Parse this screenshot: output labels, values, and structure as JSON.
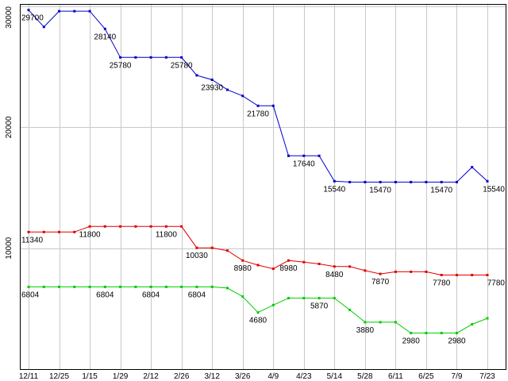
{
  "chart_data": {
    "type": "line",
    "title": "",
    "background": "#ffffff",
    "grid": true,
    "grid_color": "#c8c8c8",
    "axis_color": "#000000",
    "legend": "none",
    "ylim": [
      0,
      30200
    ],
    "y_ticks": [
      10000,
      20000,
      30000
    ],
    "y_tick_labels": [
      "10000",
      "20000",
      "30000"
    ],
    "x_tick_labels": [
      "12/11",
      "12/25",
      "1/15",
      "1/29",
      "2/12",
      "2/26",
      "3/12",
      "3/26",
      "4/9",
      "4/23",
      "5/14",
      "5/28",
      "6/11",
      "6/25",
      "7/9",
      "7/23"
    ],
    "points_per_tick": 2,
    "series": [
      {
        "name": "blue",
        "color": "#0000cc",
        "values": [
          29700,
          28300,
          29600,
          29600,
          29600,
          28140,
          25780,
          25780,
          25780,
          25780,
          25780,
          24300,
          23930,
          23100,
          22600,
          21780,
          21780,
          17640,
          17640,
          17640,
          15540,
          15470,
          15470,
          15470,
          15470,
          15470,
          15470,
          15470,
          15470,
          16700,
          15540
        ],
        "point_labels": [
          {
            "i": 0,
            "text": "29700"
          },
          {
            "i": 5,
            "text": "28140"
          },
          {
            "i": 6,
            "text": "25780"
          },
          {
            "i": 10,
            "text": "25780"
          },
          {
            "i": 12,
            "text": "23930"
          },
          {
            "i": 15,
            "text": "21780"
          },
          {
            "i": 18,
            "text": "17640"
          },
          {
            "i": 20,
            "text": "15540"
          },
          {
            "i": 23,
            "text": "15470"
          },
          {
            "i": 27,
            "text": "15470"
          },
          {
            "i": 30,
            "text": "15540"
          }
        ]
      },
      {
        "name": "red",
        "color": "#e00000",
        "values": [
          11340,
          11340,
          11340,
          11340,
          11800,
          11800,
          11800,
          11800,
          11800,
          11800,
          11800,
          10030,
          10030,
          9800,
          8980,
          8600,
          8300,
          8980,
          8850,
          8700,
          8480,
          8480,
          8150,
          7870,
          8050,
          8050,
          8050,
          7780,
          7780,
          7780,
          7780
        ],
        "point_labels": [
          {
            "i": 0,
            "text": "11340"
          },
          {
            "i": 4,
            "text": "11800"
          },
          {
            "i": 9,
            "text": "11800"
          },
          {
            "i": 11,
            "text": "10030"
          },
          {
            "i": 14,
            "text": "8980"
          },
          {
            "i": 17,
            "text": "8980"
          },
          {
            "i": 20,
            "text": "8480"
          },
          {
            "i": 23,
            "text": "7870"
          },
          {
            "i": 27,
            "text": "7780"
          },
          {
            "i": 30,
            "text": "7780"
          }
        ]
      },
      {
        "name": "green",
        "color": "#00cc00",
        "values": [
          6804,
          6804,
          6804,
          6804,
          6804,
          6804,
          6804,
          6804,
          6804,
          6804,
          6804,
          6804,
          6804,
          6700,
          6000,
          4680,
          5300,
          5870,
          5870,
          5870,
          5870,
          4900,
          3880,
          3880,
          3880,
          2980,
          2980,
          2980,
          2980,
          3700,
          4200
        ],
        "point_labels": [
          {
            "i": 0,
            "text": "6804"
          },
          {
            "i": 5,
            "text": "6804"
          },
          {
            "i": 8,
            "text": "6804"
          },
          {
            "i": 11,
            "text": "6804"
          },
          {
            "i": 15,
            "text": "4680"
          },
          {
            "i": 19,
            "text": "5870"
          },
          {
            "i": 22,
            "text": "3880"
          },
          {
            "i": 25,
            "text": "2980"
          },
          {
            "i": 28,
            "text": "2980"
          }
        ]
      }
    ]
  }
}
